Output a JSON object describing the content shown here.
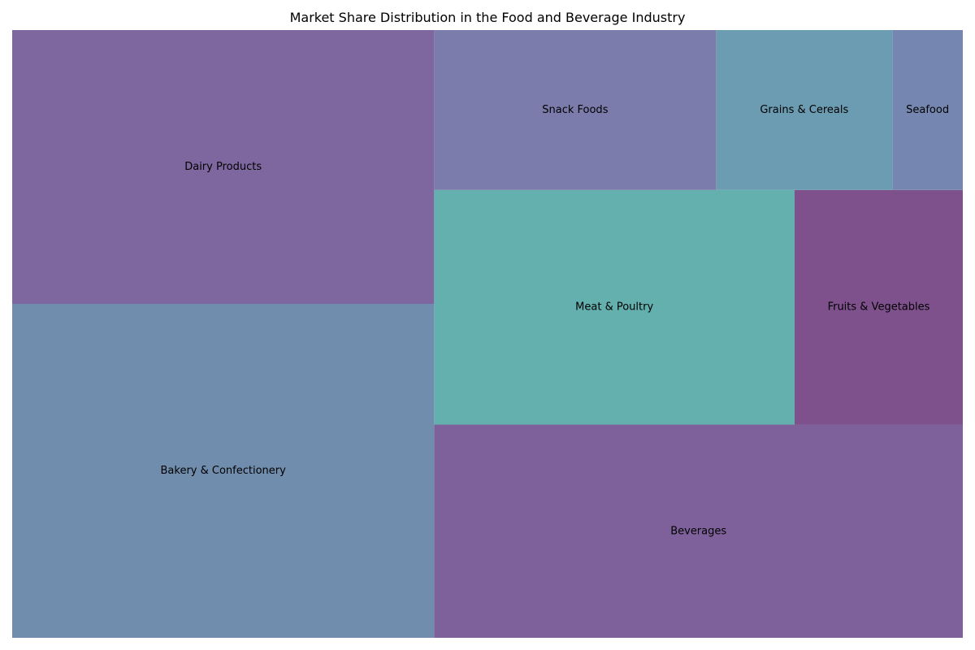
{
  "chart_data": {
    "type": "treemap",
    "title": "Market Share Distribution in the Food and Beverage Industry",
    "items": [
      {
        "label": "Bakery & Confectionery",
        "value": 25,
        "color": "#708dad"
      },
      {
        "label": "Dairy Products",
        "value": 20.5,
        "color": "#7e669e"
      },
      {
        "label": "Beverages",
        "value": 20,
        "color": "#7e609a"
      },
      {
        "label": "Meat & Poultry",
        "value": 15,
        "color": "#63b0ae"
      },
      {
        "label": "Fruits & Vegetables",
        "value": 7,
        "color": "#7e508c"
      },
      {
        "label": "Snack Foods",
        "value": 8,
        "color": "#7b7cab"
      },
      {
        "label": "Grains & Cereals",
        "value": 5,
        "color": "#6b9cb1"
      },
      {
        "label": "Seafood",
        "value": 2,
        "color": "#7587b1"
      }
    ]
  }
}
